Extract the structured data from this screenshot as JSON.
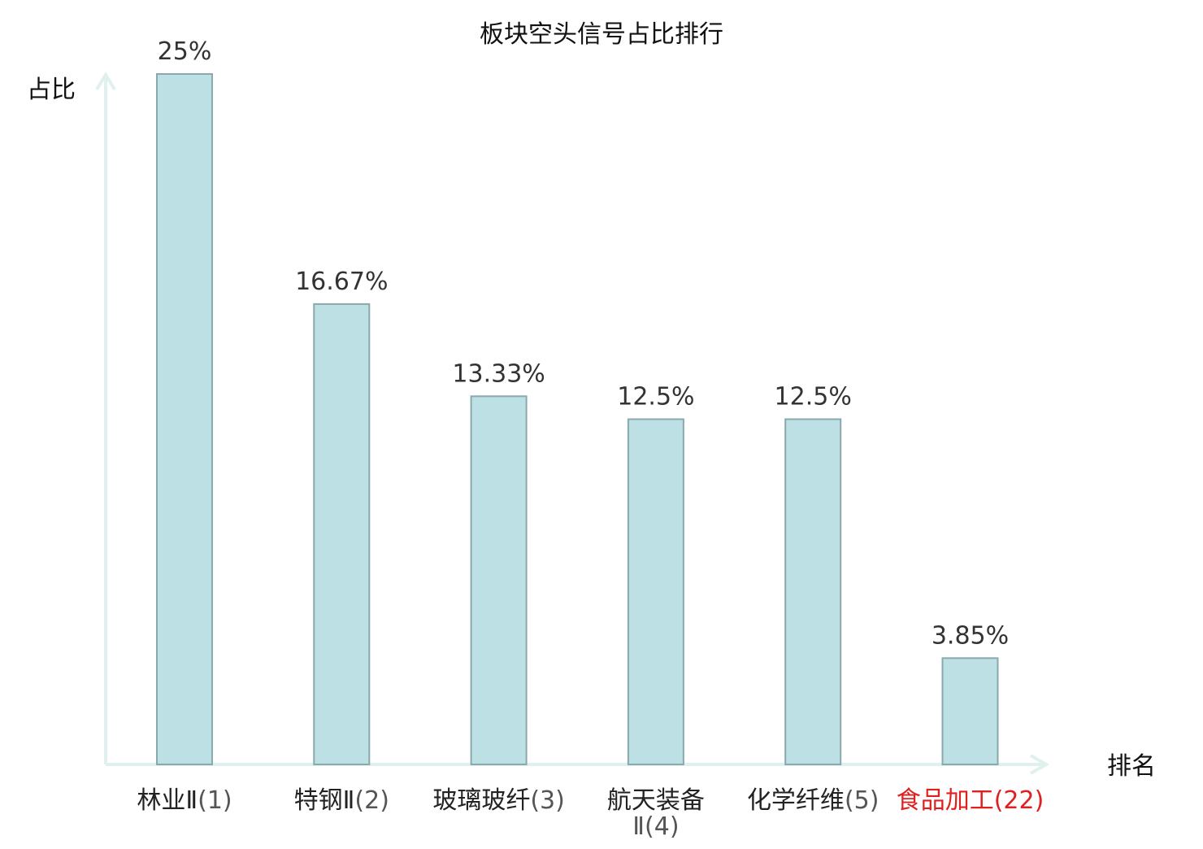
{
  "chart_data": {
    "type": "bar",
    "title": "板块空头信号占比排行",
    "ylabel": "占比",
    "xlabel": "排名",
    "ylim": [
      0,
      25
    ],
    "categories": [
      {
        "name": "林业Ⅱ",
        "rank": "(1)",
        "highlight": false
      },
      {
        "name": "特钢Ⅱ",
        "rank": "(2)",
        "highlight": false
      },
      {
        "name": "玻璃玻纤",
        "rank": "(3)",
        "highlight": false
      },
      {
        "name": "航天装备",
        "rank": "Ⅱ(4)",
        "highlight": false
      },
      {
        "name": "化学纤维",
        "rank": "(5)",
        "highlight": false
      },
      {
        "name": "食品加工",
        "rank": "(22)",
        "highlight": true
      }
    ],
    "values": [
      25,
      16.67,
      13.33,
      12.5,
      12.5,
      3.85
    ],
    "value_labels": [
      "25%",
      "16.67%",
      "13.33%",
      "12.5%",
      "12.5%",
      "3.85%"
    ]
  },
  "colors": {
    "bar_fill": "#bce0e3",
    "bar_stroke": "#8aa9ad",
    "axis": "#dff0ee",
    "text": "#222222",
    "value_text": "#333333",
    "rank_text": "#555555",
    "highlight": "#e0201f"
  }
}
